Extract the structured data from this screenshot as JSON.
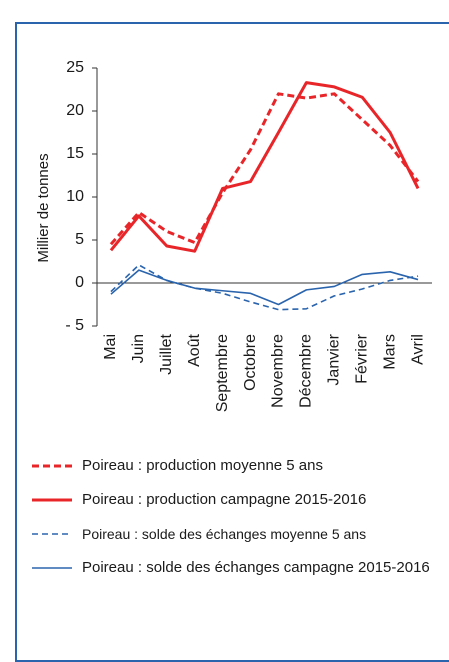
{
  "chart_data": {
    "type": "line",
    "y_label": "Millier de tonnes",
    "categories": [
      "Mai",
      "Juin",
      "Juillet",
      "Août",
      "Septembre",
      "Octobre",
      "Novembre",
      "Décembre",
      "Janvier",
      "Février",
      "Mars",
      "Avril"
    ],
    "series": [
      {
        "name": "Poireau : production moyenne 5 ans",
        "color": "#e8262a",
        "dash": true,
        "values": [
          4.5,
          8.2,
          6,
          4.7,
          10.5,
          15.5,
          22,
          21.5,
          22,
          19,
          16,
          11.8
        ]
      },
      {
        "name": "Poireau : production campagne 2015-2016",
        "color": "#e8262a",
        "dash": false,
        "values": [
          3.8,
          7.8,
          4.3,
          3.7,
          11,
          11.8,
          17.5,
          23.3,
          22.8,
          21.6,
          17.5,
          11
        ]
      },
      {
        "name": "Poireau : solde des échanges moyenne 5 ans",
        "color": "#2a64ad",
        "dash": true,
        "values": [
          -1,
          2.1,
          0.3,
          -0.6,
          -1.2,
          -2.2,
          -3.1,
          -3,
          -1.5,
          -0.7,
          0.3,
          0.8
        ]
      },
      {
        "name": "Poireau : solde des échanges campagne 2015-2016",
        "color": "#2a64ad",
        "dash": false,
        "values": [
          -1.3,
          1.5,
          0.3,
          -0.6,
          -0.9,
          -1.2,
          -2.5,
          -0.8,
          -0.4,
          1,
          1.3,
          0.4
        ]
      }
    ],
    "ylim": [
      -5,
      25
    ],
    "yticks": [
      {
        "value": -5,
        "label": "- 5"
      },
      0,
      5,
      10,
      15,
      20,
      25
    ]
  }
}
